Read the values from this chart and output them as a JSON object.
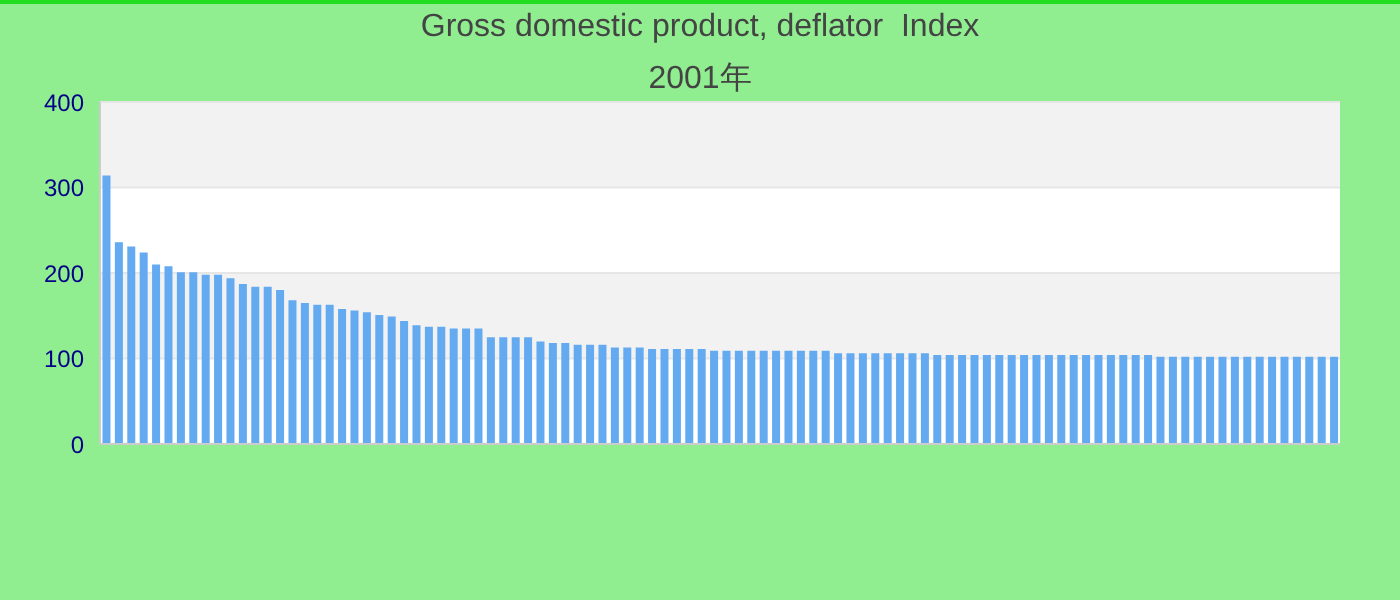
{
  "chart_data": {
    "type": "bar",
    "title": "Gross domestic product, deflator  Index",
    "subtitle": "2001年",
    "categories": [
      null,
      null,
      null,
      null,
      null,
      null,
      null,
      null,
      null,
      null,
      null,
      null,
      null,
      null,
      null,
      null,
      null,
      null,
      null,
      null,
      null,
      null,
      null,
      null,
      null,
      null,
      null,
      null,
      null,
      null,
      null,
      null,
      null,
      null,
      null,
      null,
      null,
      null,
      null,
      null,
      null,
      null,
      null,
      null,
      null,
      null,
      null,
      null,
      null,
      null,
      null,
      null,
      null,
      null,
      null,
      null,
      null,
      null,
      null,
      null,
      null,
      null,
      null,
      null,
      null,
      null,
      null,
      null,
      null,
      null,
      null,
      null,
      null,
      null,
      null,
      null,
      null,
      null,
      null,
      null,
      null,
      null,
      null,
      null,
      null,
      null,
      null,
      null,
      null,
      null,
      null,
      null,
      null,
      null,
      null,
      null,
      null,
      null,
      null,
      null
    ],
    "values": [
      314,
      236,
      231,
      224,
      210,
      208,
      201,
      201,
      198,
      198,
      194,
      187,
      184,
      184,
      180,
      168,
      165,
      163,
      163,
      158,
      156,
      154,
      151,
      149,
      144,
      139,
      137,
      137,
      135,
      135,
      135,
      125,
      125,
      125,
      125,
      120,
      118,
      118,
      116,
      116,
      116,
      113,
      113,
      113,
      111,
      111,
      111,
      111,
      111,
      109,
      109,
      109,
      109,
      109,
      109,
      109,
      109,
      109,
      109,
      106,
      106,
      106,
      106,
      106,
      106,
      106,
      106,
      104,
      104,
      104,
      104,
      104,
      104,
      104,
      104,
      104,
      104,
      104,
      104,
      104,
      104,
      104,
      104,
      104,
      104,
      102,
      102,
      102,
      102,
      102,
      102,
      102,
      102,
      102,
      102,
      102,
      102,
      102,
      102,
      102
    ],
    "color": "#64aaf0",
    "ylim": [
      0,
      400
    ],
    "yticks": [
      0,
      100,
      200,
      300,
      400
    ],
    "grid": "y"
  }
}
